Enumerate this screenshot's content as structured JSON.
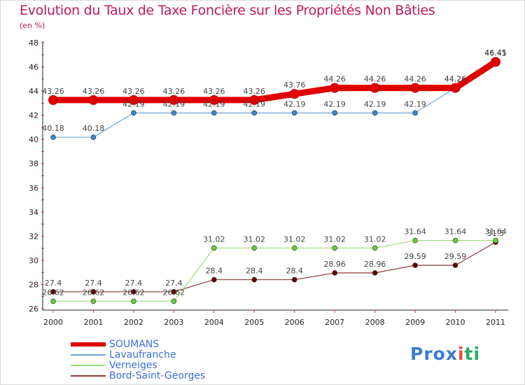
{
  "header": {
    "title": "Evolution du Taux de Taxe Foncière sur les Propriétés Non Bâties",
    "unit": "(en %)"
  },
  "logo": {
    "text": "Prox",
    "x_letter": "i",
    "text2": "ti",
    "colors": [
      "#3a7bd5",
      "#f39c12",
      "#27ae60",
      "#e74c3c",
      "#8e44ad"
    ]
  },
  "chart_data": {
    "type": "line",
    "title": "Evolution du Taux de Taxe Foncière sur les Propriétés Non Bâties",
    "ylabel": "(en %)",
    "xlabel": "",
    "x": [
      "2000",
      "2001",
      "2002",
      "2003",
      "2004",
      "2005",
      "2006",
      "2007",
      "2008",
      "2009",
      "2010",
      "2011"
    ],
    "ylim": [
      26,
      48
    ],
    "yticks": [
      26,
      28,
      30,
      32,
      34,
      36,
      38,
      40,
      42,
      44,
      46,
      48
    ],
    "grid": false,
    "legend": "bottom-left",
    "series": [
      {
        "name": "SOUMANS",
        "color": "#e00000",
        "marker_color": "#c00000",
        "labels": [
          "43.26",
          "43.26",
          "43.26",
          "43.26",
          "43.26",
          "43.26",
          "43.76",
          "44.26",
          "44.26",
          "44.26",
          "44.26",
          "46.41"
        ],
        "values": [
          43.26,
          43.26,
          43.26,
          43.26,
          43.26,
          43.26,
          43.76,
          44.26,
          44.26,
          44.26,
          44.26,
          46.41
        ],
        "width": "thick"
      },
      {
        "name": "Lavaufranche",
        "color": "#6fa8dc",
        "marker_color": "#3d85c6",
        "labels": [
          "40.18",
          "40.18",
          "42.19",
          "42.19",
          "42.19",
          "42.19",
          "42.19",
          "42.19",
          "42.19",
          "42.19",
          "44.26",
          "46.45"
        ],
        "values": [
          40.18,
          40.18,
          42.19,
          42.19,
          42.19,
          42.19,
          42.19,
          42.19,
          42.19,
          42.19,
          44.26,
          46.45
        ],
        "width": "thin"
      },
      {
        "name": "Verneiges",
        "color": "#99dd77",
        "marker_color": "#66cc33",
        "labels": [
          "26.62",
          "26.62",
          "26.62",
          "26.62",
          "31.02",
          "31.02",
          "31.02",
          "31.02",
          "31.02",
          "31.64",
          "31.64",
          "31.64"
        ],
        "values": [
          26.62,
          26.62,
          26.62,
          26.62,
          31.02,
          31.02,
          31.02,
          31.02,
          31.02,
          31.64,
          31.64,
          31.64
        ],
        "width": "thin"
      },
      {
        "name": "Bord-Saint-Georges",
        "color": "#8b3a3a",
        "marker_color": "#660000",
        "labels": [
          "27.4",
          "27.4",
          "27.4",
          "27.4",
          "28.4",
          "28.4",
          "28.4",
          "28.96",
          "28.96",
          "29.59",
          "29.59",
          "31.5"
        ],
        "values": [
          27.4,
          27.4,
          27.4,
          27.4,
          28.4,
          28.4,
          28.4,
          28.96,
          28.96,
          29.59,
          29.59,
          31.5
        ],
        "width": "thin"
      }
    ]
  }
}
